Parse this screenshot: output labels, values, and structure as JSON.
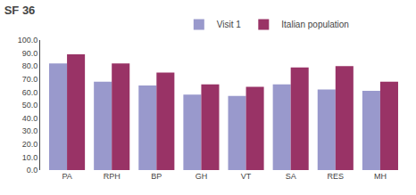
{
  "chart_data": {
    "type": "bar",
    "title": "SF 36",
    "categories": [
      "PA",
      "RPH",
      "BP",
      "GH",
      "VT",
      "SA",
      "RES",
      "MH"
    ],
    "series": [
      {
        "name": "Visit 1",
        "color": "#9999cc",
        "values": [
          82,
          68,
          65,
          58,
          57,
          66,
          62,
          61
        ]
      },
      {
        "name": "Italian population",
        "color": "#993366",
        "values": [
          89,
          82,
          75,
          66,
          64,
          79,
          80,
          68
        ]
      }
    ],
    "ylim": [
      0,
      100
    ],
    "yticks": [
      {
        "value": 0,
        "label": "0.0"
      },
      {
        "value": 10,
        "label": "10.0"
      },
      {
        "value": 20,
        "label": "20.0"
      },
      {
        "value": 30,
        "label": "30.0"
      },
      {
        "value": 40,
        "label": "40.0"
      },
      {
        "value": 50,
        "label": "50.0"
      },
      {
        "value": 60,
        "label": "60.0"
      },
      {
        "value": 70,
        "label": "70.0"
      },
      {
        "value": 80,
        "label": "80.0"
      },
      {
        "value": 90,
        "label": "90.0"
      },
      {
        "value": 100,
        "label": "100.0"
      }
    ],
    "grid": false,
    "legend": "top"
  }
}
